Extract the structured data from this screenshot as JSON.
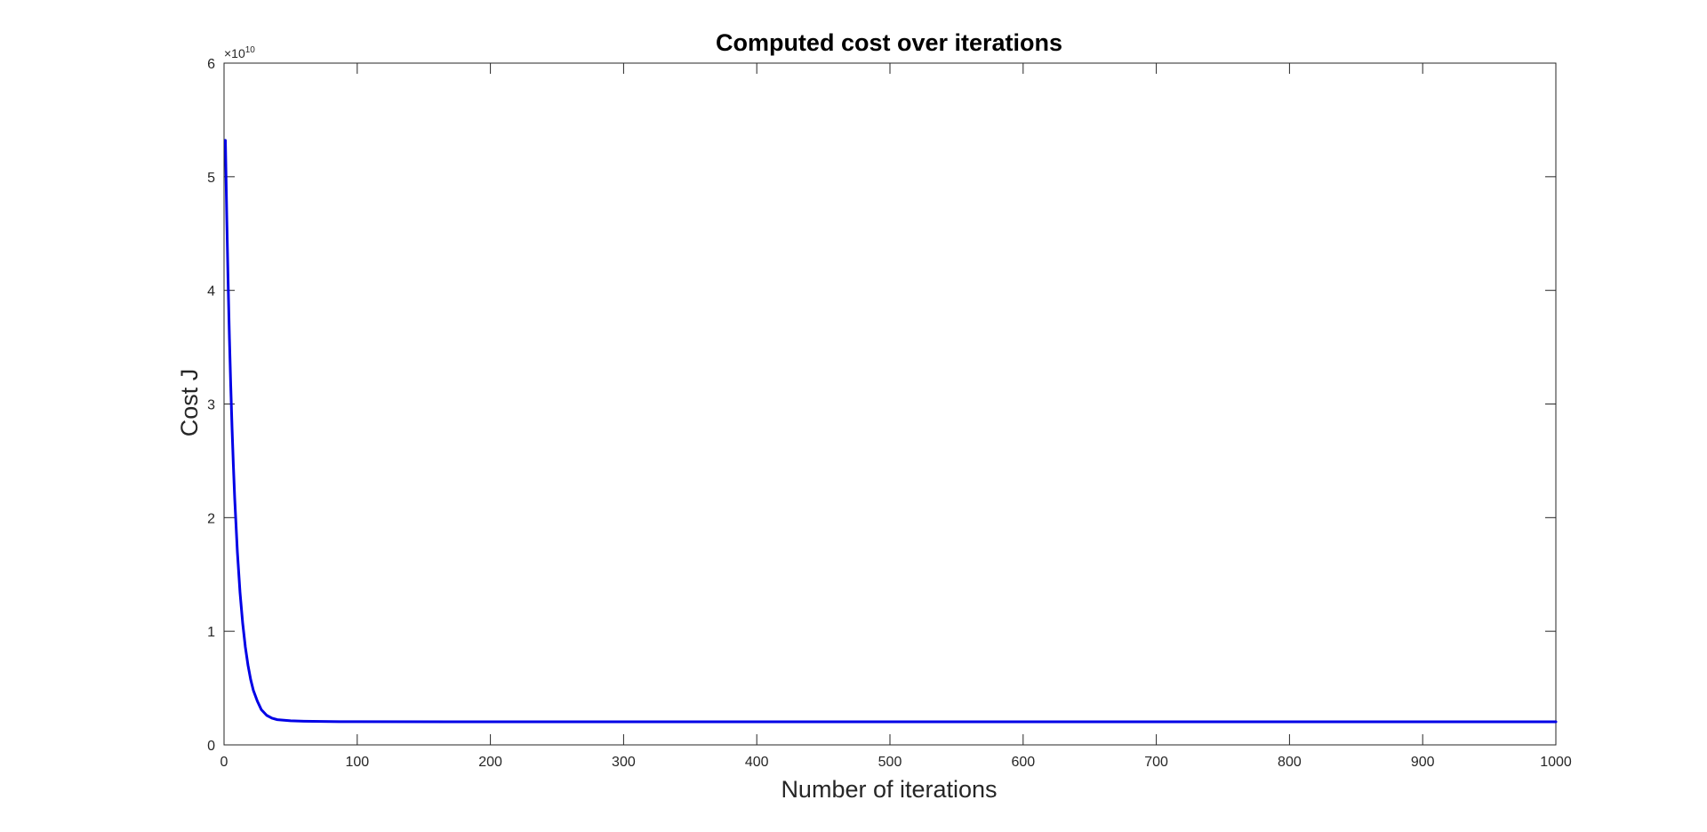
{
  "chart_data": {
    "type": "line",
    "title": "Computed cost over iterations",
    "xlabel": "Number of iterations",
    "ylabel": "Cost J",
    "xlim": [
      0,
      1000
    ],
    "ylim": [
      0,
      6
    ],
    "y_exponent_label": "×10",
    "y_exponent_power": "10",
    "x_ticks": [
      0,
      100,
      200,
      300,
      400,
      500,
      600,
      700,
      800,
      900,
      1000
    ],
    "y_ticks": [
      0,
      1,
      2,
      3,
      4,
      5,
      6
    ],
    "grid": false,
    "box": true,
    "series": [
      {
        "color": "#0000e6",
        "x": [
          1,
          2,
          3,
          4,
          5,
          6,
          7,
          8,
          10,
          12,
          14,
          16,
          18,
          20,
          22,
          25,
          28,
          32,
          36,
          40,
          50,
          60,
          80,
          100,
          200,
          300,
          400,
          500,
          600,
          700,
          800,
          900,
          1000
        ],
        "y": [
          5.32,
          4.67,
          4.1,
          3.6,
          3.17,
          2.79,
          2.46,
          2.17,
          1.7,
          1.34,
          1.07,
          0.86,
          0.7,
          0.575,
          0.48,
          0.385,
          0.31,
          0.26,
          0.235,
          0.222,
          0.212,
          0.208,
          0.205,
          0.204,
          0.203,
          0.203,
          0.203,
          0.203,
          0.203,
          0.203,
          0.203,
          0.203,
          0.203
        ]
      }
    ]
  }
}
